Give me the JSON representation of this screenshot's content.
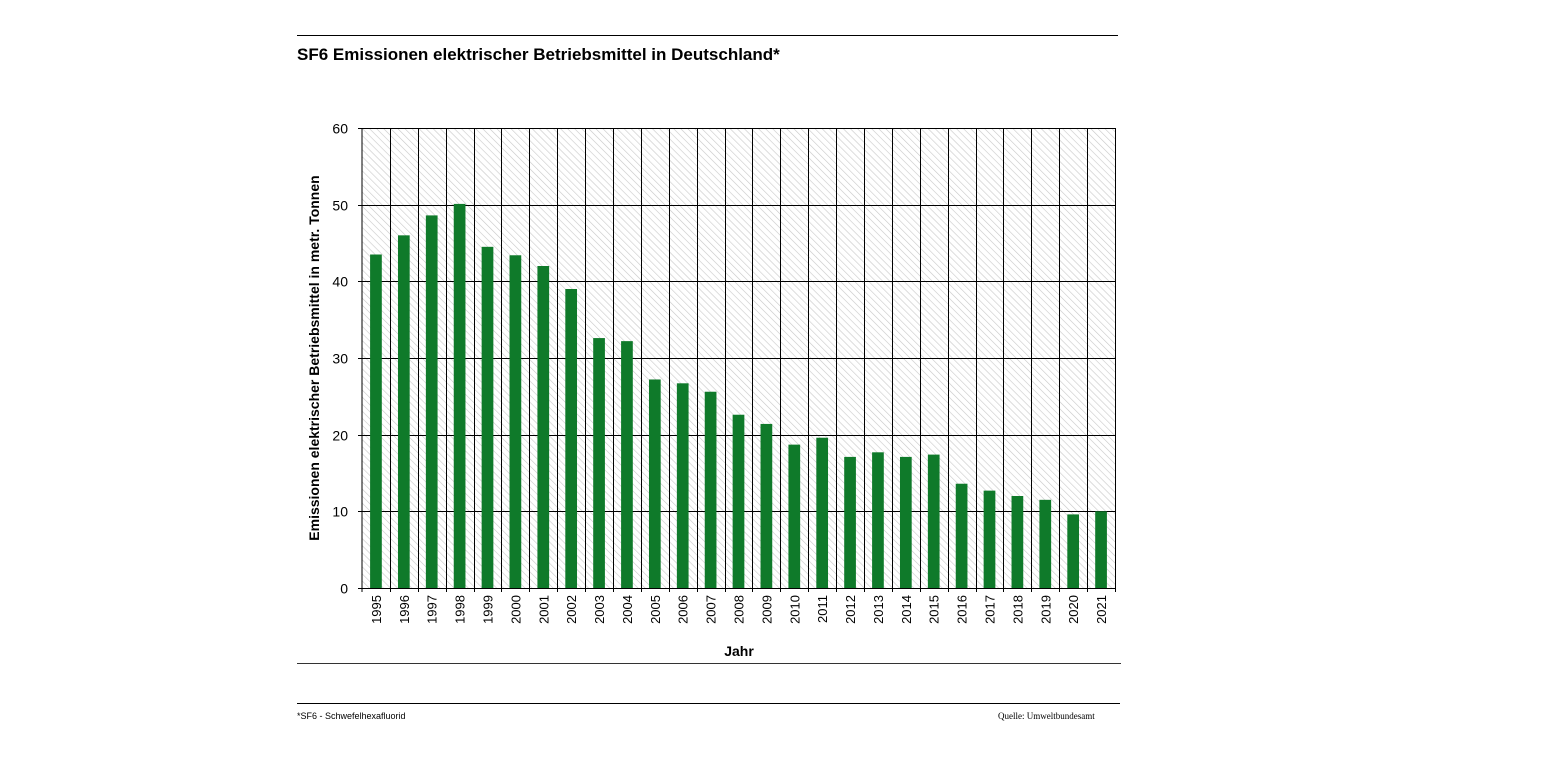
{
  "page": {
    "title": "SF6 Emissionen elektrischer Betriebsmittel in Deutschland*",
    "footnote": "*SF6 - Schwefelhexafluorid",
    "source": "Quelle: Umweltbundesamt"
  },
  "colors": {
    "bar": "#0f7a2a",
    "grid": "#000000",
    "hatch": "#c8c8c8"
  },
  "chart_data": {
    "type": "bar",
    "categories": [
      "1995",
      "1996",
      "1997",
      "1998",
      "1999",
      "2000",
      "2001",
      "2002",
      "2003",
      "2004",
      "2005",
      "2006",
      "2007",
      "2008",
      "2009",
      "2010",
      "2011",
      "2012",
      "2013",
      "2014",
      "2015",
      "2016",
      "2017",
      "2018",
      "2019",
      "2020",
      "2021"
    ],
    "values": [
      43.5,
      46.0,
      48.6,
      50.1,
      44.5,
      43.4,
      42.0,
      39.0,
      32.6,
      32.2,
      27.2,
      26.7,
      25.6,
      22.6,
      21.4,
      18.7,
      19.6,
      17.1,
      17.7,
      17.1,
      17.4,
      13.6,
      12.7,
      12.0,
      11.5,
      9.6,
      10.0
    ],
    "title": "SF6 Emissionen elektrischer Betriebsmittel in Deutschland*",
    "xlabel": "Jahr",
    "ylabel": "Emissionen elektrischer Betriebsmittel in metr. Tonnen",
    "ylim": [
      0,
      60
    ],
    "yticks": [
      0,
      10,
      20,
      30,
      40,
      50,
      60
    ],
    "grid": true,
    "legend": "none"
  }
}
